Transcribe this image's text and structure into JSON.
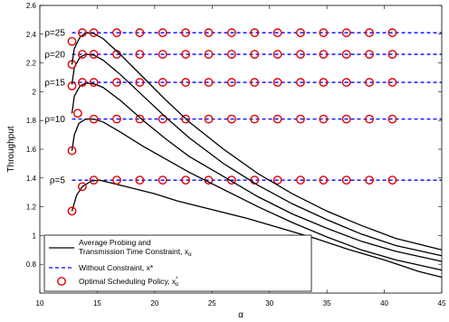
{
  "chart_data": {
    "type": "line",
    "title": "",
    "xlabel": "α",
    "ylabel": "Throughput",
    "xlim": [
      10,
      45
    ],
    "ylim": [
      0.6,
      2.6
    ],
    "xticks": [
      10,
      15,
      20,
      25,
      30,
      35,
      40,
      45
    ],
    "yticks": [
      0.8,
      1.0,
      1.2,
      1.4,
      1.6,
      1.8,
      2.0,
      2.2,
      2.4,
      2.6
    ],
    "xtick_labels": [
      "10",
      "15",
      "20",
      "25",
      "30",
      "35",
      "40",
      "45"
    ],
    "ytick_labels": [
      "0.8",
      "1",
      "1.2",
      "1.4",
      "1.6",
      "1.8",
      "2",
      "2.2",
      "2.4",
      "2.6"
    ],
    "grid": false,
    "legend_position": "bottom-left",
    "rho_groups": [
      {
        "label": "ρ=5",
        "optimal_value": 1.385,
        "constraint_curve": [
          [
            12.8,
            1.17
          ],
          [
            13.2,
            1.28
          ],
          [
            13.7,
            1.34
          ],
          [
            14.5,
            1.38
          ],
          [
            15.2,
            1.385
          ],
          [
            16,
            1.37
          ],
          [
            18,
            1.33
          ],
          [
            20,
            1.29
          ],
          [
            22,
            1.24
          ],
          [
            25,
            1.18
          ],
          [
            28,
            1.12
          ],
          [
            31,
            1.05
          ],
          [
            34,
            0.98
          ],
          [
            37,
            0.9
          ],
          [
            40,
            0.83
          ],
          [
            43,
            0.75
          ],
          [
            45,
            0.71
          ]
        ],
        "optimal_markers": [
          [
            12.8,
            1.17
          ],
          [
            13.7,
            1.34
          ],
          [
            14.7,
            1.385
          ],
          [
            16.7,
            1.385
          ],
          [
            18.7,
            1.385
          ],
          [
            20.7,
            1.385
          ],
          [
            22.7,
            1.385
          ],
          [
            24.7,
            1.385
          ],
          [
            26.7,
            1.385
          ],
          [
            28.7,
            1.385
          ],
          [
            30.7,
            1.385
          ],
          [
            32.7,
            1.385
          ],
          [
            34.7,
            1.385
          ],
          [
            36.7,
            1.385
          ],
          [
            38.7,
            1.385
          ],
          [
            40.7,
            1.385
          ]
        ]
      },
      {
        "label": "ρ=10",
        "optimal_value": 1.81,
        "constraint_curve": [
          [
            12.8,
            1.59
          ],
          [
            13,
            1.7
          ],
          [
            13.4,
            1.78
          ],
          [
            14,
            1.81
          ],
          [
            14.7,
            1.81
          ],
          [
            15.5,
            1.79
          ],
          [
            17,
            1.72
          ],
          [
            19,
            1.62
          ],
          [
            21,
            1.53
          ],
          [
            23,
            1.44
          ],
          [
            26,
            1.32
          ],
          [
            29,
            1.2
          ],
          [
            32,
            1.09
          ],
          [
            35,
            0.99
          ],
          [
            38,
            0.9
          ],
          [
            41,
            0.83
          ],
          [
            45,
            0.76
          ]
        ],
        "optimal_markers": [
          [
            12.8,
            1.59
          ],
          [
            13.3,
            1.85
          ],
          [
            14.7,
            1.81
          ],
          [
            16.7,
            1.81
          ],
          [
            18.7,
            1.81
          ],
          [
            20.7,
            1.81
          ],
          [
            22.7,
            1.81
          ],
          [
            24.7,
            1.81
          ],
          [
            26.7,
            1.81
          ],
          [
            28.7,
            1.81
          ],
          [
            30.7,
            1.81
          ],
          [
            32.7,
            1.81
          ],
          [
            34.7,
            1.81
          ],
          [
            36.7,
            1.81
          ],
          [
            38.7,
            1.81
          ],
          [
            40.7,
            1.81
          ]
        ]
      },
      {
        "label": "ρ=15",
        "optimal_value": 2.065,
        "constraint_curve": [
          [
            12.8,
            1.85
          ],
          [
            13,
            1.97
          ],
          [
            13.5,
            2.04
          ],
          [
            14,
            2.06
          ],
          [
            14.7,
            2.055
          ],
          [
            15.5,
            2.03
          ],
          [
            17,
            1.94
          ],
          [
            19,
            1.8
          ],
          [
            21,
            1.67
          ],
          [
            23,
            1.55
          ],
          [
            26,
            1.41
          ],
          [
            29,
            1.27
          ],
          [
            32,
            1.15
          ],
          [
            35,
            1.05
          ],
          [
            38,
            0.96
          ],
          [
            41,
            0.89
          ],
          [
            45,
            0.82
          ]
        ],
        "optimal_markers": [
          [
            12.8,
            2.04
          ],
          [
            13.7,
            2.065
          ],
          [
            14.7,
            2.065
          ],
          [
            16.7,
            2.065
          ],
          [
            18.7,
            2.065
          ],
          [
            20.7,
            2.065
          ],
          [
            22.7,
            2.065
          ],
          [
            24.7,
            2.065
          ],
          [
            26.7,
            2.065
          ],
          [
            28.7,
            2.065
          ],
          [
            30.7,
            2.065
          ],
          [
            32.7,
            2.065
          ],
          [
            34.7,
            2.065
          ],
          [
            36.7,
            2.065
          ],
          [
            38.7,
            2.065
          ],
          [
            40.7,
            2.065
          ]
        ]
      },
      {
        "label": "ρ=20",
        "optimal_value": 2.26,
        "constraint_curve": [
          [
            12.8,
            2.05
          ],
          [
            13,
            2.17
          ],
          [
            13.5,
            2.24
          ],
          [
            14,
            2.26
          ],
          [
            14.7,
            2.255
          ],
          [
            15.5,
            2.22
          ],
          [
            17,
            2.12
          ],
          [
            19,
            1.97
          ],
          [
            21,
            1.82
          ],
          [
            23,
            1.68
          ],
          [
            26,
            1.5
          ],
          [
            29,
            1.35
          ],
          [
            32,
            1.22
          ],
          [
            35,
            1.11
          ],
          [
            38,
            1.01
          ],
          [
            41,
            0.93
          ],
          [
            45,
            0.86
          ]
        ],
        "optimal_markers": [
          [
            12.8,
            2.19
          ],
          [
            13.7,
            2.26
          ],
          [
            14.7,
            2.26
          ],
          [
            16.7,
            2.26
          ],
          [
            18.7,
            2.26
          ],
          [
            20.7,
            2.26
          ],
          [
            22.7,
            2.26
          ],
          [
            24.7,
            2.26
          ],
          [
            26.7,
            2.26
          ],
          [
            28.7,
            2.26
          ],
          [
            30.7,
            2.26
          ],
          [
            32.7,
            2.26
          ],
          [
            34.7,
            2.26
          ],
          [
            36.7,
            2.26
          ],
          [
            38.7,
            2.26
          ],
          [
            40.7,
            2.26
          ]
        ]
      },
      {
        "label": "ρ=25",
        "optimal_value": 2.41,
        "constraint_curve": [
          [
            12.8,
            2.19
          ],
          [
            13,
            2.3
          ],
          [
            13.5,
            2.38
          ],
          [
            14,
            2.41
          ],
          [
            14.7,
            2.405
          ],
          [
            15.5,
            2.37
          ],
          [
            17,
            2.26
          ],
          [
            19,
            2.1
          ],
          [
            21,
            1.94
          ],
          [
            23,
            1.79
          ],
          [
            26,
            1.6
          ],
          [
            29,
            1.43
          ],
          [
            32,
            1.29
          ],
          [
            35,
            1.17
          ],
          [
            38,
            1.07
          ],
          [
            41,
            0.98
          ],
          [
            45,
            0.9
          ]
        ],
        "optimal_markers": [
          [
            12.8,
            2.35
          ],
          [
            13.7,
            2.41
          ],
          [
            14.7,
            2.41
          ],
          [
            16.7,
            2.41
          ],
          [
            18.7,
            2.41
          ],
          [
            20.7,
            2.41
          ],
          [
            22.7,
            2.41
          ],
          [
            24.7,
            2.41
          ],
          [
            26.7,
            2.41
          ],
          [
            28.7,
            2.41
          ],
          [
            30.7,
            2.41
          ],
          [
            32.7,
            2.41
          ],
          [
            34.7,
            2.41
          ],
          [
            36.7,
            2.41
          ],
          [
            38.7,
            2.41
          ],
          [
            40.7,
            2.41
          ]
        ]
      }
    ],
    "legend": {
      "constraint_line1": "Average Probing and",
      "constraint_line2": "Transmission Time Constraint, x",
      "constraint_sub": "α",
      "without_constraint": "Without Constraint, x*",
      "optimal_policy": "Optimal Scheduling Policy, x",
      "optimal_sub": "α",
      "optimal_sup": "*"
    },
    "colors": {
      "constraint_line": "#000000",
      "without_constraint": "#0000ff",
      "optimal_marker": "#e00000"
    }
  }
}
